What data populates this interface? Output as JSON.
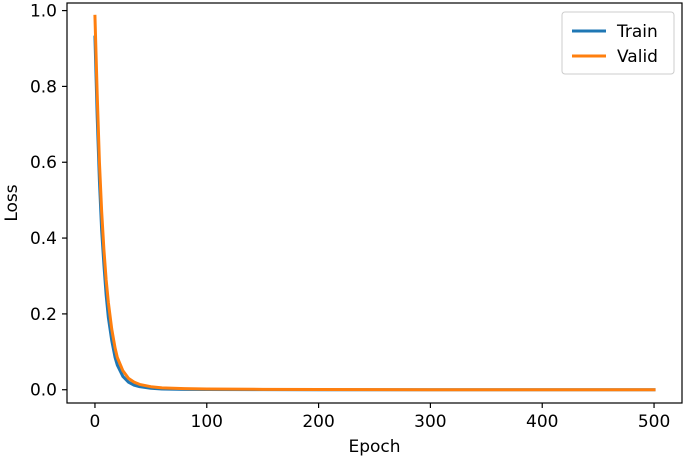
{
  "chart_data": {
    "type": "line",
    "title": "",
    "xlabel": "Epoch",
    "ylabel": "Loss",
    "xlim": [
      -25,
      525
    ],
    "ylim": [
      -0.035,
      1.02
    ],
    "xticks": [
      0,
      100,
      200,
      300,
      400,
      500
    ],
    "xtick_labels": [
      "0",
      "100",
      "200",
      "300",
      "400",
      "500"
    ],
    "yticks": [
      0.0,
      0.2,
      0.4,
      0.6,
      0.8,
      1.0
    ],
    "ytick_labels": [
      "0.0",
      "0.2",
      "0.4",
      "0.6",
      "0.8",
      "1.0"
    ],
    "grid": false,
    "legend_position": "top-right",
    "series": [
      {
        "name": "Train",
        "color": "#1f77b4",
        "x": [
          0,
          2,
          4,
          6,
          8,
          10,
          12,
          15,
          18,
          20,
          25,
          30,
          35,
          40,
          50,
          60,
          80,
          100,
          150,
          200,
          300,
          400,
          500
        ],
        "y": [
          0.93,
          0.72,
          0.55,
          0.42,
          0.33,
          0.25,
          0.19,
          0.13,
          0.085,
          0.065,
          0.035,
          0.02,
          0.012,
          0.008,
          0.004,
          0.002,
          0.001,
          0.0005,
          0.0002,
          0.0001,
          0.0,
          0.0,
          0.0
        ]
      },
      {
        "name": "Valid",
        "color": "#ff7f0e",
        "x": [
          0,
          2,
          4,
          6,
          8,
          10,
          12,
          15,
          18,
          20,
          25,
          30,
          35,
          40,
          50,
          60,
          80,
          100,
          150,
          200,
          300,
          400,
          500
        ],
        "y": [
          0.985,
          0.78,
          0.6,
          0.47,
          0.37,
          0.29,
          0.23,
          0.16,
          0.11,
          0.085,
          0.05,
          0.03,
          0.02,
          0.014,
          0.008,
          0.005,
          0.003,
          0.002,
          0.001,
          0.0005,
          0.0,
          0.0,
          0.0
        ]
      }
    ]
  }
}
